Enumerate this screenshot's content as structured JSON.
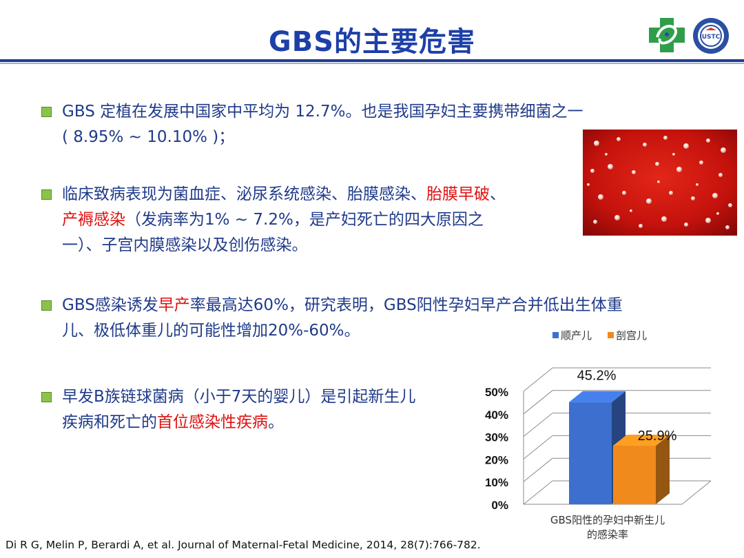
{
  "title": "GBS的主要危害",
  "bullets": [
    {
      "parts": [
        {
          "t": "GBS 定植在发展中国家中平均为 12.7%。也是我国孕妇主要携带细菌之一",
          "red": false
        },
        {
          "t": "( 8.95% ~ 10.10% )；",
          "red": false,
          "br": true
        }
      ]
    },
    {
      "parts": [
        {
          "t": "临床致病表现为菌血症、泌尿系统感染、胎膜感染、",
          "red": false
        },
        {
          "t": "胎膜早破",
          "red": true
        },
        {
          "t": "、",
          "red": false
        },
        {
          "t": "产褥感染",
          "red": true,
          "br": true
        },
        {
          "t": "（发病率为1% ~ 7.2%，是产妇死亡的四大原因之",
          "red": false
        },
        {
          "t": "一）、子宫内膜感染以及创伤感染。",
          "red": false,
          "br": true
        }
      ]
    },
    {
      "parts": [
        {
          "t": "GBS感染诱发",
          "red": false
        },
        {
          "t": "早产",
          "red": true
        },
        {
          "t": "率最高达60%，研究表明，GBS阳性孕妇早产合并低出生体重",
          "red": false
        },
        {
          "t": "儿、极低体重儿的可能性增加20%-60%。",
          "red": false,
          "br": true
        }
      ]
    },
    {
      "parts": [
        {
          "t": "早发B族链球菌病（小于7天的婴儿）是引起新生儿",
          "red": false
        },
        {
          "t": "疾病和死亡的",
          "red": false,
          "br": true
        },
        {
          "t": "首位感染性疾病",
          "red": true
        },
        {
          "t": "。",
          "red": false
        }
      ]
    }
  ],
  "chart_data": {
    "type": "bar",
    "categories": [
      "GBS阳性的孕妇中新生儿的感染率"
    ],
    "xlabel_lines": [
      "GBS阳性的孕妇中新生儿",
      "的感染率"
    ],
    "series": [
      {
        "name": "顺产儿",
        "values": [
          45.2
        ],
        "label": "45.2%",
        "color": "#3d6fcf"
      },
      {
        "name": "剖宫儿",
        "values": [
          25.9
        ],
        "label": "25.9%",
        "color": "#f08a1c"
      }
    ],
    "ylim": [
      0,
      50
    ],
    "yticks": [
      "0%",
      "10%",
      "20%",
      "30%",
      "40%",
      "50%"
    ],
    "legend": "top-right",
    "grid": true
  },
  "citation": "Di R G, Melin P, Berardi A, et al. Journal of Maternal-Fetal Medicine, 2014, 28(7):766-782.",
  "icons": [
    "hospital-cross-logo",
    "university-seal-logo",
    "bacteria-colony-photo"
  ],
  "logo_text": "USTC"
}
